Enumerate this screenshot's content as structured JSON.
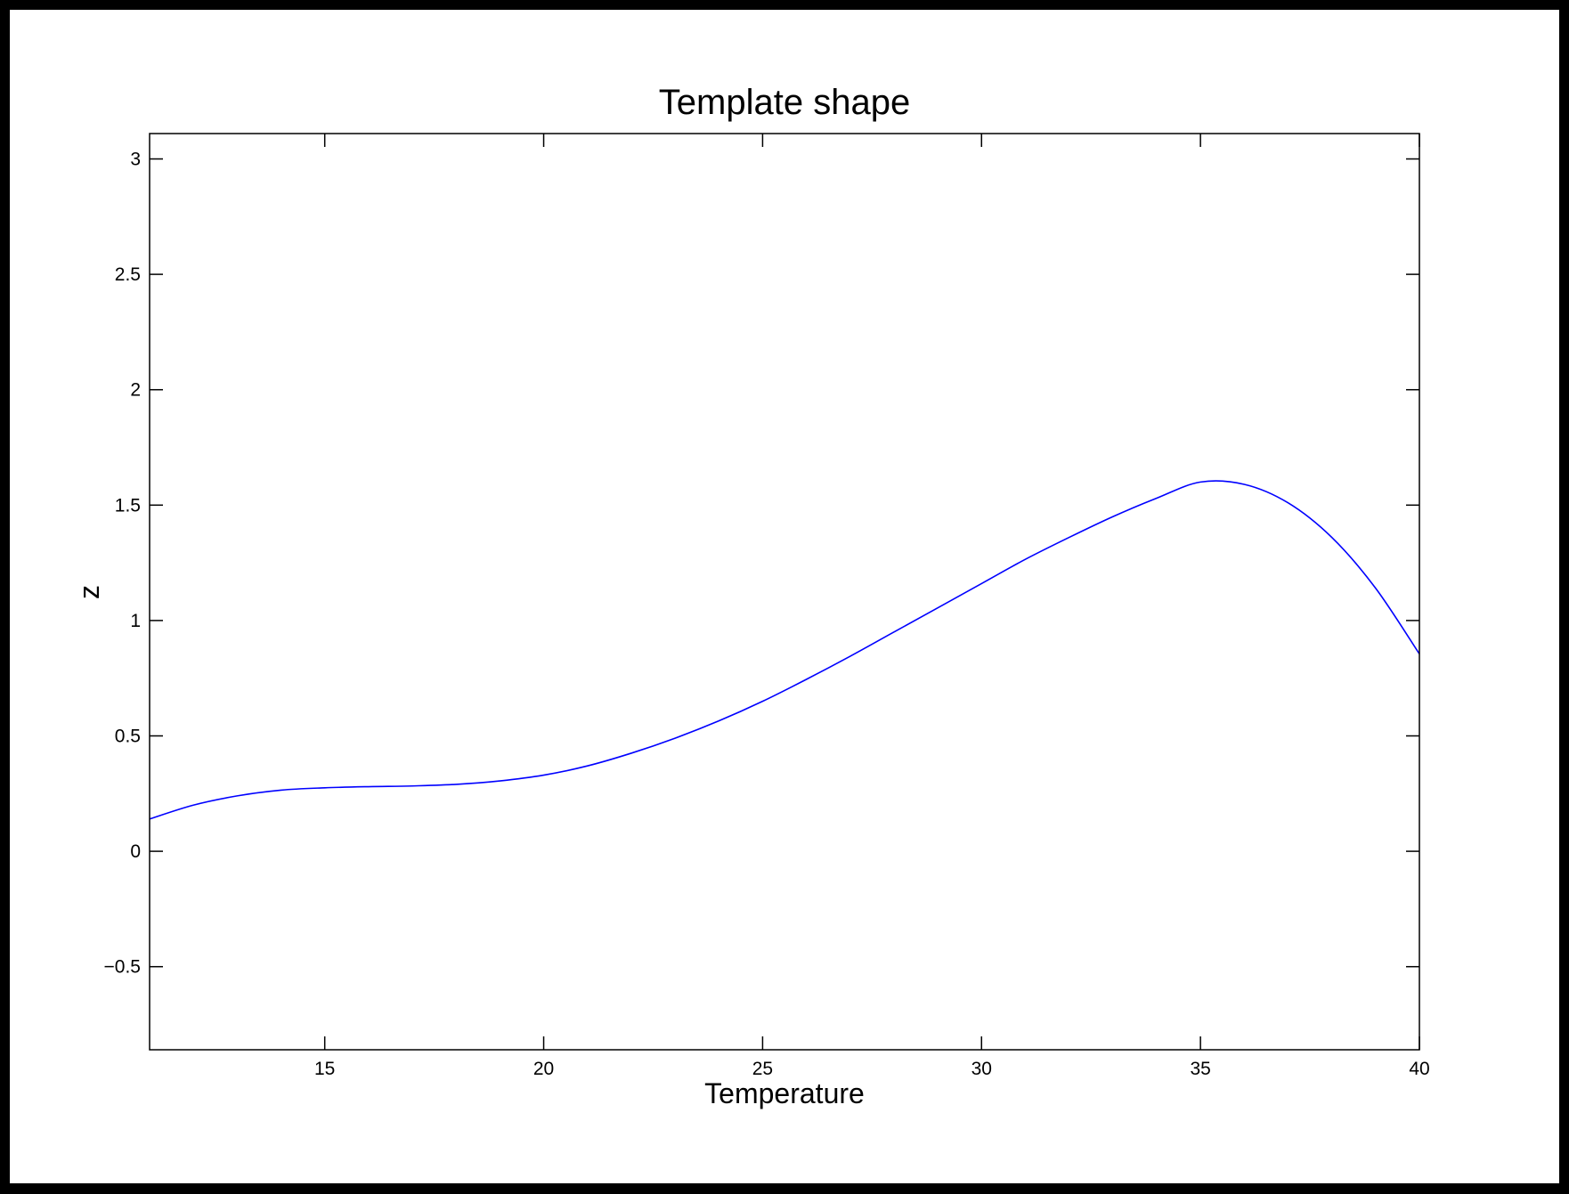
{
  "chart_data": {
    "type": "line",
    "title": "Template shape",
    "xlabel": "Temperature",
    "ylabel": "z",
    "xlim": [
      11,
      40
    ],
    "ylim": [
      -0.86,
      3.11
    ],
    "xticks": [
      15,
      20,
      25,
      30,
      35,
      40
    ],
    "yticks": [
      -0.5,
      0,
      0.5,
      1,
      1.5,
      2,
      2.5,
      3
    ],
    "ytick_labels": [
      "−0.5",
      "0",
      "0.5",
      "1",
      "1.5",
      "2",
      "2.5",
      "3"
    ],
    "grid": false,
    "series": [
      {
        "color": "#0000ff",
        "x": [
          11,
          12,
          13,
          14,
          15,
          16,
          17,
          18,
          19,
          20,
          21,
          22,
          23,
          24,
          25,
          26,
          27,
          28,
          29,
          30,
          31,
          32,
          33,
          34,
          35,
          36,
          37,
          38,
          39,
          40
        ],
        "y": [
          0.14,
          0.2,
          0.24,
          0.265,
          0.275,
          0.28,
          0.283,
          0.29,
          0.305,
          0.33,
          0.37,
          0.425,
          0.49,
          0.565,
          0.65,
          0.745,
          0.845,
          0.95,
          1.055,
          1.16,
          1.265,
          1.36,
          1.45,
          1.53,
          1.6,
          1.59,
          1.51,
          1.36,
          1.14,
          0.855
        ]
      }
    ]
  }
}
